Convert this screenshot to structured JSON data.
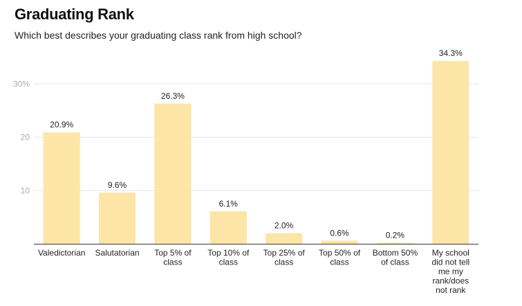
{
  "chart_data": {
    "type": "bar",
    "title": "Graduating Rank",
    "subtitle": "Which best describes your graduating class rank from high school?",
    "xlabel": "",
    "ylabel": "",
    "ylim": [
      0,
      35
    ],
    "yticks": [
      {
        "value": 10,
        "label": "10"
      },
      {
        "value": 20,
        "label": "20"
      },
      {
        "value": 30,
        "label": "30%"
      }
    ],
    "grid": true,
    "categories": [
      "Valedictorian",
      "Salutatorian",
      "Top 5% of class",
      "Top 10% of class",
      "Top 25% of class",
      "Top 50% of class",
      "Bottom 50% of class",
      "My school did not tell me my rank/does not rank"
    ],
    "category_lines": [
      [
        "Valedictorian"
      ],
      [
        "Salutatorian"
      ],
      [
        "Top 5% of",
        "class"
      ],
      [
        "Top 10% of",
        "class"
      ],
      [
        "Top 25% of",
        "class"
      ],
      [
        "Top 50% of",
        "class"
      ],
      [
        "Bottom 50%",
        "of class"
      ],
      [
        "My school",
        "did not tell",
        "me my",
        "rank/does",
        "not rank"
      ]
    ],
    "values": [
      20.9,
      9.6,
      26.3,
      6.1,
      2.0,
      0.6,
      0.2,
      34.3
    ],
    "data_labels": [
      "20.9%",
      "9.6%",
      "26.3%",
      "6.1%",
      "2.0%",
      "0.6%",
      "0.2%",
      "34.3%"
    ],
    "bar_color": "#fce5a6",
    "axis_color": "#555555",
    "grid_color": "#e6e6e6"
  }
}
